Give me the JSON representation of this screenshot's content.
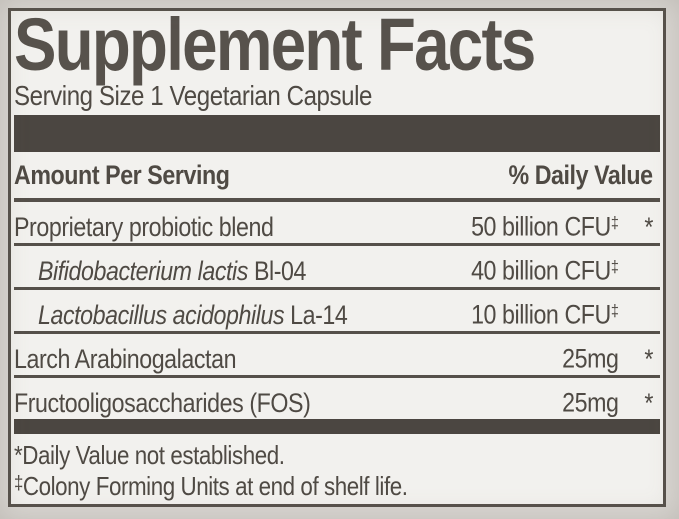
{
  "label": {
    "title": "Supplement Facts",
    "serving_size": "Serving Size 1 Vegetarian Capsule",
    "columns": {
      "amount": "Amount Per Serving",
      "daily_value": "% Daily Value"
    },
    "rows": [
      {
        "name_italic": "",
        "name": "Proprietary probiotic blend",
        "amount": "50 billion CFU",
        "amount_mark": "‡",
        "daily_value": "*"
      },
      {
        "name_italic": "Bifidobacterium lactis",
        "name": " Bl-04",
        "amount": "40 billion CFU",
        "amount_mark": "‡",
        "daily_value": ""
      },
      {
        "name_italic": "Lactobacillus acidophilus",
        "name": " La-14",
        "amount": "10 billion CFU",
        "amount_mark": "‡",
        "daily_value": ""
      },
      {
        "name_italic": "",
        "name": "Larch Arabinogalactan",
        "amount": "25mg",
        "amount_mark": "",
        "daily_value": "*"
      },
      {
        "name_italic": "",
        "name": "Fructooligosaccharides (FOS)",
        "amount": "25mg",
        "amount_mark": "",
        "daily_value": "*"
      }
    ],
    "footnotes": [
      {
        "marker": "*",
        "text": "Daily Value not established."
      },
      {
        "marker": "‡",
        "text": "Colony Forming Units at end of shelf life."
      }
    ],
    "colors": {
      "ink": "#4f4a44",
      "bar": "#4b4641",
      "rule": "#55504a",
      "panel_background": "#f2f1ee",
      "outer_background": "#d9d6d2"
    }
  }
}
